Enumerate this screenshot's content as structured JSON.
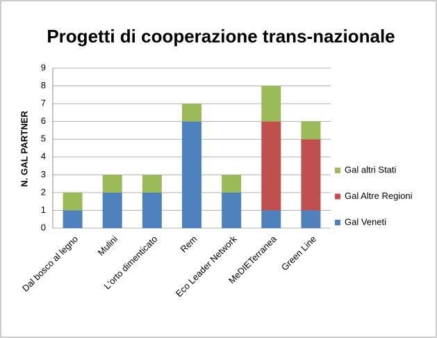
{
  "chart_data": {
    "type": "bar",
    "stacked": true,
    "title": "Progetti di cooperazione trans-nazionale",
    "y_label": "N. GAL PARTNER",
    "categories": [
      "Dal bosco al legno",
      "Mulini",
      "L'orto dimenticato",
      "Rem",
      "Eco Leader Network",
      "MeDIETerranea",
      "Green Line"
    ],
    "series": [
      {
        "name": "Gal Veneti",
        "color": "#4f81bd",
        "values": [
          1,
          2,
          2,
          6,
          2,
          1,
          1
        ]
      },
      {
        "name": "Gal Altre Regioni",
        "color": "#c0504d",
        "values": [
          0,
          0,
          0,
          0,
          0,
          5,
          4
        ]
      },
      {
        "name": "Gal altri Stati",
        "color": "#9bbb59",
        "values": [
          1,
          1,
          1,
          1,
          1,
          2,
          1
        ]
      }
    ],
    "ylim": [
      0,
      9
    ],
    "yticks": [
      0,
      1,
      2,
      3,
      4,
      5,
      6,
      7,
      8,
      9
    ],
    "grid": true,
    "legend": "right"
  }
}
